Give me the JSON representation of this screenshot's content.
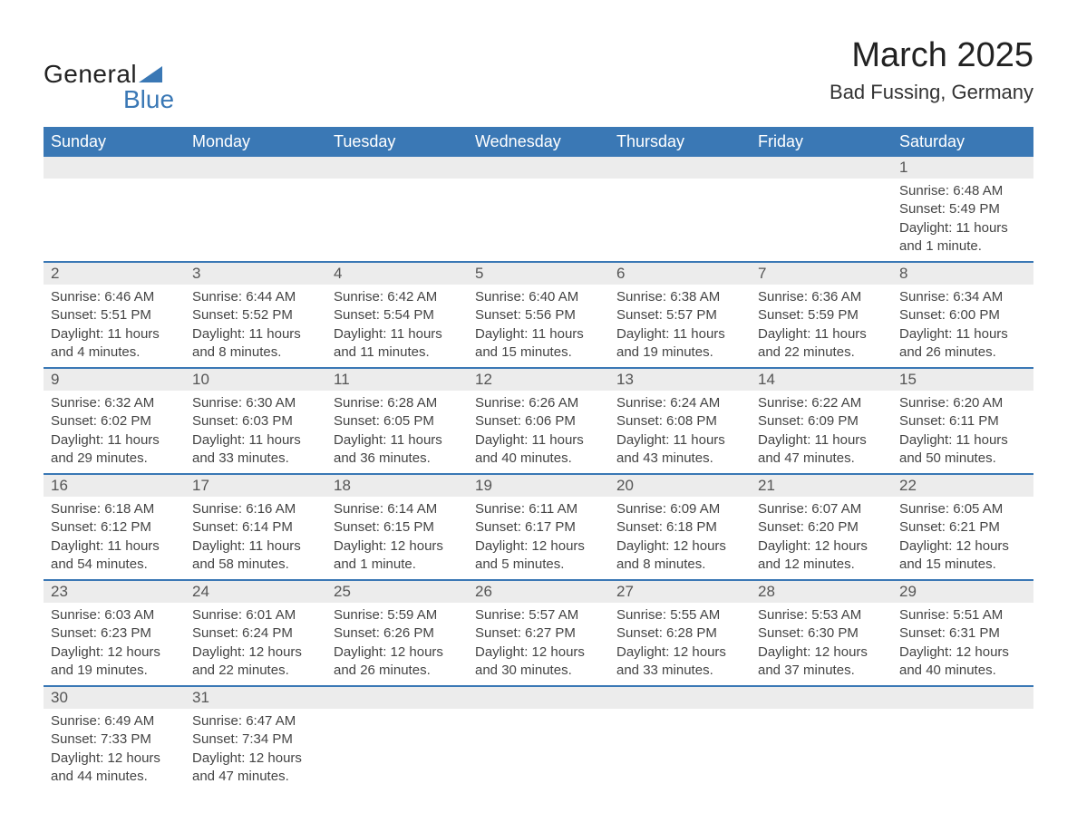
{
  "brand": {
    "part1": "General",
    "part2": "Blue",
    "accent_color": "#3a78b5"
  },
  "title": "March 2025",
  "location": "Bad Fussing, Germany",
  "colors": {
    "header_bg": "#3a78b5",
    "header_text": "#ffffff",
    "daynum_bg": "#ececec",
    "row_border": "#3a78b5",
    "body_text": "#444444"
  },
  "columns": [
    "Sunday",
    "Monday",
    "Tuesday",
    "Wednesday",
    "Thursday",
    "Friday",
    "Saturday"
  ],
  "weeks": [
    [
      null,
      null,
      null,
      null,
      null,
      null,
      {
        "day": "1",
        "sunrise": "Sunrise: 6:48 AM",
        "sunset": "Sunset: 5:49 PM",
        "daylight": "Daylight: 11 hours and 1 minute."
      }
    ],
    [
      {
        "day": "2",
        "sunrise": "Sunrise: 6:46 AM",
        "sunset": "Sunset: 5:51 PM",
        "daylight": "Daylight: 11 hours and 4 minutes."
      },
      {
        "day": "3",
        "sunrise": "Sunrise: 6:44 AM",
        "sunset": "Sunset: 5:52 PM",
        "daylight": "Daylight: 11 hours and 8 minutes."
      },
      {
        "day": "4",
        "sunrise": "Sunrise: 6:42 AM",
        "sunset": "Sunset: 5:54 PM",
        "daylight": "Daylight: 11 hours and 11 minutes."
      },
      {
        "day": "5",
        "sunrise": "Sunrise: 6:40 AM",
        "sunset": "Sunset: 5:56 PM",
        "daylight": "Daylight: 11 hours and 15 minutes."
      },
      {
        "day": "6",
        "sunrise": "Sunrise: 6:38 AM",
        "sunset": "Sunset: 5:57 PM",
        "daylight": "Daylight: 11 hours and 19 minutes."
      },
      {
        "day": "7",
        "sunrise": "Sunrise: 6:36 AM",
        "sunset": "Sunset: 5:59 PM",
        "daylight": "Daylight: 11 hours and 22 minutes."
      },
      {
        "day": "8",
        "sunrise": "Sunrise: 6:34 AM",
        "sunset": "Sunset: 6:00 PM",
        "daylight": "Daylight: 11 hours and 26 minutes."
      }
    ],
    [
      {
        "day": "9",
        "sunrise": "Sunrise: 6:32 AM",
        "sunset": "Sunset: 6:02 PM",
        "daylight": "Daylight: 11 hours and 29 minutes."
      },
      {
        "day": "10",
        "sunrise": "Sunrise: 6:30 AM",
        "sunset": "Sunset: 6:03 PM",
        "daylight": "Daylight: 11 hours and 33 minutes."
      },
      {
        "day": "11",
        "sunrise": "Sunrise: 6:28 AM",
        "sunset": "Sunset: 6:05 PM",
        "daylight": "Daylight: 11 hours and 36 minutes."
      },
      {
        "day": "12",
        "sunrise": "Sunrise: 6:26 AM",
        "sunset": "Sunset: 6:06 PM",
        "daylight": "Daylight: 11 hours and 40 minutes."
      },
      {
        "day": "13",
        "sunrise": "Sunrise: 6:24 AM",
        "sunset": "Sunset: 6:08 PM",
        "daylight": "Daylight: 11 hours and 43 minutes."
      },
      {
        "day": "14",
        "sunrise": "Sunrise: 6:22 AM",
        "sunset": "Sunset: 6:09 PM",
        "daylight": "Daylight: 11 hours and 47 minutes."
      },
      {
        "day": "15",
        "sunrise": "Sunrise: 6:20 AM",
        "sunset": "Sunset: 6:11 PM",
        "daylight": "Daylight: 11 hours and 50 minutes."
      }
    ],
    [
      {
        "day": "16",
        "sunrise": "Sunrise: 6:18 AM",
        "sunset": "Sunset: 6:12 PM",
        "daylight": "Daylight: 11 hours and 54 minutes."
      },
      {
        "day": "17",
        "sunrise": "Sunrise: 6:16 AM",
        "sunset": "Sunset: 6:14 PM",
        "daylight": "Daylight: 11 hours and 58 minutes."
      },
      {
        "day": "18",
        "sunrise": "Sunrise: 6:14 AM",
        "sunset": "Sunset: 6:15 PM",
        "daylight": "Daylight: 12 hours and 1 minute."
      },
      {
        "day": "19",
        "sunrise": "Sunrise: 6:11 AM",
        "sunset": "Sunset: 6:17 PM",
        "daylight": "Daylight: 12 hours and 5 minutes."
      },
      {
        "day": "20",
        "sunrise": "Sunrise: 6:09 AM",
        "sunset": "Sunset: 6:18 PM",
        "daylight": "Daylight: 12 hours and 8 minutes."
      },
      {
        "day": "21",
        "sunrise": "Sunrise: 6:07 AM",
        "sunset": "Sunset: 6:20 PM",
        "daylight": "Daylight: 12 hours and 12 minutes."
      },
      {
        "day": "22",
        "sunrise": "Sunrise: 6:05 AM",
        "sunset": "Sunset: 6:21 PM",
        "daylight": "Daylight: 12 hours and 15 minutes."
      }
    ],
    [
      {
        "day": "23",
        "sunrise": "Sunrise: 6:03 AM",
        "sunset": "Sunset: 6:23 PM",
        "daylight": "Daylight: 12 hours and 19 minutes."
      },
      {
        "day": "24",
        "sunrise": "Sunrise: 6:01 AM",
        "sunset": "Sunset: 6:24 PM",
        "daylight": "Daylight: 12 hours and 22 minutes."
      },
      {
        "day": "25",
        "sunrise": "Sunrise: 5:59 AM",
        "sunset": "Sunset: 6:26 PM",
        "daylight": "Daylight: 12 hours and 26 minutes."
      },
      {
        "day": "26",
        "sunrise": "Sunrise: 5:57 AM",
        "sunset": "Sunset: 6:27 PM",
        "daylight": "Daylight: 12 hours and 30 minutes."
      },
      {
        "day": "27",
        "sunrise": "Sunrise: 5:55 AM",
        "sunset": "Sunset: 6:28 PM",
        "daylight": "Daylight: 12 hours and 33 minutes."
      },
      {
        "day": "28",
        "sunrise": "Sunrise: 5:53 AM",
        "sunset": "Sunset: 6:30 PM",
        "daylight": "Daylight: 12 hours and 37 minutes."
      },
      {
        "day": "29",
        "sunrise": "Sunrise: 5:51 AM",
        "sunset": "Sunset: 6:31 PM",
        "daylight": "Daylight: 12 hours and 40 minutes."
      }
    ],
    [
      {
        "day": "30",
        "sunrise": "Sunrise: 6:49 AM",
        "sunset": "Sunset: 7:33 PM",
        "daylight": "Daylight: 12 hours and 44 minutes."
      },
      {
        "day": "31",
        "sunrise": "Sunrise: 6:47 AM",
        "sunset": "Sunset: 7:34 PM",
        "daylight": "Daylight: 12 hours and 47 minutes."
      },
      null,
      null,
      null,
      null,
      null
    ]
  ]
}
